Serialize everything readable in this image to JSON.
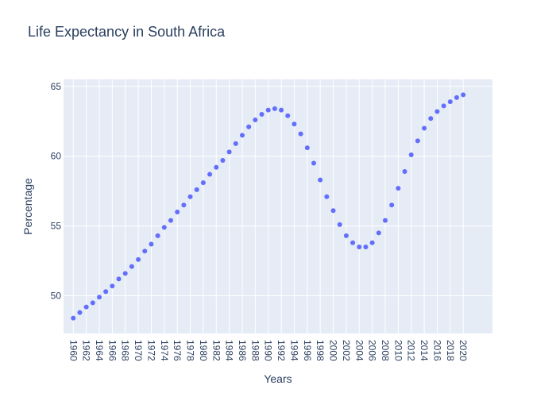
{
  "chart_data": {
    "type": "scatter",
    "title": "Life Expectancy in South Africa",
    "xlabel": "Years",
    "ylabel": "Percentage",
    "xlim": [
      1958.5,
      2024.5
    ],
    "ylim": [
      47.3,
      65.5
    ],
    "x_ticks": [
      1960,
      1962,
      1964,
      1966,
      1968,
      1970,
      1972,
      1974,
      1976,
      1978,
      1980,
      1982,
      1984,
      1986,
      1988,
      1990,
      1992,
      1994,
      1996,
      1998,
      2000,
      2002,
      2004,
      2006,
      2008,
      2010,
      2012,
      2014,
      2016,
      2018,
      2020
    ],
    "y_ticks": [
      50,
      55,
      60,
      65
    ],
    "grid": true,
    "marker_color": "#636efa",
    "plot_bg": "#e5ecf6",
    "series": [
      {
        "x": [
          1960,
          1961,
          1962,
          1963,
          1964,
          1965,
          1966,
          1967,
          1968,
          1969,
          1970,
          1971,
          1972,
          1973,
          1974,
          1975,
          1976,
          1977,
          1978,
          1979,
          1980,
          1981,
          1982,
          1983,
          1984,
          1985,
          1986,
          1987,
          1988,
          1989,
          1990,
          1991,
          1992,
          1993,
          1994,
          1995,
          1996,
          1997,
          1998,
          1999,
          2000,
          2001,
          2002,
          2003,
          2004,
          2005,
          2006,
          2007,
          2008,
          2009,
          2010,
          2011,
          2012,
          2013,
          2014,
          2015,
          2016,
          2017,
          2018,
          2019,
          2020
        ],
        "y": [
          48.4,
          48.8,
          49.2,
          49.5,
          49.9,
          50.3,
          50.7,
          51.2,
          51.6,
          52.1,
          52.6,
          53.2,
          53.7,
          54.3,
          54.9,
          55.4,
          56.0,
          56.5,
          57.1,
          57.6,
          58.1,
          58.7,
          59.2,
          59.7,
          60.3,
          60.9,
          61.5,
          62.1,
          62.6,
          63.0,
          63.3,
          63.4,
          63.3,
          62.9,
          62.3,
          61.6,
          60.6,
          59.5,
          58.3,
          57.1,
          56.1,
          55.1,
          54.3,
          53.8,
          53.5,
          53.5,
          53.8,
          54.5,
          55.4,
          56.5,
          57.7,
          58.9,
          60.1,
          61.1,
          62.0,
          62.7,
          63.2,
          63.6,
          63.9,
          64.2,
          64.4
        ]
      }
    ]
  }
}
